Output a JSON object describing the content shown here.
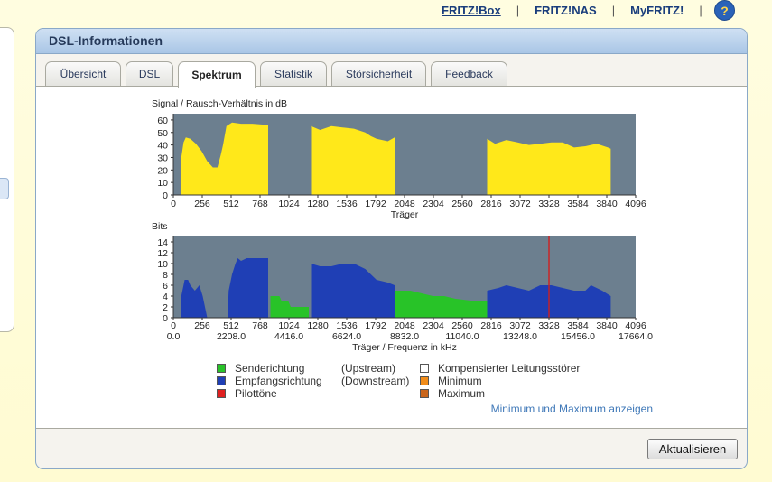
{
  "topnav": {
    "fritzbox": "FRITZ!Box",
    "fritznas": "FRITZ!NAS",
    "myfritz": "MyFRITZ!",
    "sep": "|",
    "help": "?"
  },
  "panel": {
    "title": "DSL-Informationen"
  },
  "tabs": [
    "Übersicht",
    "DSL",
    "Spektrum",
    "Statistik",
    "Störsicherheit",
    "Feedback"
  ],
  "active_tab": "Spektrum",
  "chart_data": [
    {
      "type": "area",
      "title": "Signal / Rausch-Verhältnis in dB",
      "xlabel": "Träger",
      "ylabel": "",
      "xlim": [
        0,
        4096
      ],
      "ylim": [
        0,
        65
      ],
      "yticks": [
        0,
        10,
        20,
        30,
        40,
        50,
        60
      ],
      "xticks": [
        0,
        256,
        512,
        768,
        1024,
        1280,
        1536,
        1792,
        2048,
        2304,
        2560,
        2816,
        3072,
        3328,
        3584,
        3840,
        4096
      ],
      "series": [
        {
          "color": "#ffe81a",
          "segments": [
            [
              [
                64,
                0
              ],
              [
                70,
                30
              ],
              [
                90,
                42
              ],
              [
                110,
                46
              ],
              [
                150,
                45
              ],
              [
                200,
                41
              ],
              [
                250,
                35
              ],
              [
                300,
                27
              ],
              [
                350,
                22
              ],
              [
                390,
                22
              ],
              [
                420,
                32
              ],
              [
                440,
                40
              ],
              [
                470,
                55
              ],
              [
                520,
                58
              ],
              [
                600,
                57
              ],
              [
                700,
                57
              ],
              [
                840,
                56
              ],
              [
                840,
                0
              ]
            ],
            [
              [
                1220,
                0
              ],
              [
                1220,
                55
              ],
              [
                1300,
                52
              ],
              [
                1400,
                55
              ],
              [
                1500,
                54
              ],
              [
                1600,
                53
              ],
              [
                1700,
                50
              ],
              [
                1750,
                47
              ],
              [
                1800,
                45
              ],
              [
                1900,
                43
              ],
              [
                1960,
                46
              ],
              [
                1960,
                0
              ]
            ],
            [
              [
                2780,
                0
              ],
              [
                2780,
                45
              ],
              [
                2850,
                41
              ],
              [
                2950,
                44
              ],
              [
                3050,
                42
              ],
              [
                3150,
                40
              ],
              [
                3250,
                41
              ],
              [
                3350,
                42
              ],
              [
                3450,
                42
              ],
              [
                3550,
                38
              ],
              [
                3650,
                39
              ],
              [
                3750,
                41
              ],
              [
                3850,
                38
              ],
              [
                3875,
                37
              ],
              [
                3875,
                0
              ]
            ]
          ]
        }
      ]
    },
    {
      "type": "area",
      "title": "Bits",
      "xlabel": "Träger / Frequenz in kHz",
      "ylabel": "",
      "xlim": [
        0,
        4096
      ],
      "ylim": [
        0,
        15
      ],
      "yticks": [
        0,
        2,
        4,
        6,
        8,
        10,
        12,
        14
      ],
      "xticks": [
        0,
        256,
        512,
        768,
        1024,
        1280,
        1536,
        1792,
        2048,
        2304,
        2560,
        2816,
        3072,
        3328,
        3584,
        3840,
        4096
      ],
      "freq_ticks": [
        "0.0",
        "2208.0",
        "4416.0",
        "6624.0",
        "8832.0",
        "11040.0",
        "13248.0",
        "15456.0",
        "17664.0"
      ],
      "pilot_tone": 3328,
      "series": [
        {
          "name": "Senderichtung (Upstream)",
          "color": "#28c328",
          "segments": [
            [
              [
                860,
                0
              ],
              [
                860,
                4
              ],
              [
                940,
                4
              ],
              [
                960,
                3
              ],
              [
                1020,
                3
              ],
              [
                1040,
                2
              ],
              [
                1200,
                2
              ],
              [
                1200,
                0
              ]
            ],
            [
              [
                1960,
                0
              ],
              [
                1960,
                5
              ],
              [
                2100,
                5
              ],
              [
                2200,
                4.5
              ],
              [
                2300,
                4
              ],
              [
                2400,
                4
              ],
              [
                2500,
                3.5
              ],
              [
                2700,
                3
              ],
              [
                2780,
                3
              ],
              [
                2780,
                0
              ]
            ]
          ]
        },
        {
          "name": "Empfangsrichtung (Downstream)",
          "color": "#1f3fb5",
          "segments": [
            [
              [
                64,
                0
              ],
              [
                70,
                4
              ],
              [
                90,
                6
              ],
              [
                100,
                7
              ],
              [
                130,
                7
              ],
              [
                150,
                6
              ],
              [
                190,
                5
              ],
              [
                230,
                6
              ],
              [
                260,
                4
              ],
              [
                280,
                2
              ],
              [
                300,
                0
              ]
            ],
            [
              [
                480,
                0
              ],
              [
                490,
                5
              ],
              [
                520,
                8
              ],
              [
                550,
                10
              ],
              [
                570,
                11
              ],
              [
                600,
                10.5
              ],
              [
                650,
                11
              ],
              [
                840,
                11
              ],
              [
                840,
                0
              ]
            ],
            [
              [
                1220,
                0
              ],
              [
                1220,
                10
              ],
              [
                1300,
                9.5
              ],
              [
                1400,
                9.5
              ],
              [
                1500,
                10
              ],
              [
                1600,
                10
              ],
              [
                1700,
                9
              ],
              [
                1800,
                7
              ],
              [
                1900,
                6.5
              ],
              [
                1960,
                6
              ],
              [
                1960,
                0
              ]
            ],
            [
              [
                2780,
                0
              ],
              [
                2780,
                5
              ],
              [
                2880,
                5.5
              ],
              [
                2950,
                6
              ],
              [
                3050,
                5.5
              ],
              [
                3150,
                5
              ],
              [
                3250,
                6
              ],
              [
                3350,
                6
              ],
              [
                3450,
                5.5
              ],
              [
                3550,
                5
              ],
              [
                3650,
                5
              ],
              [
                3700,
                6
              ],
              [
                3800,
                5
              ],
              [
                3875,
                4
              ],
              [
                3875,
                0
              ]
            ]
          ]
        }
      ]
    }
  ],
  "legend": {
    "items": [
      {
        "label": "Senderichtung",
        "sub": "(Upstream)",
        "color": "#28c328"
      },
      {
        "label": "Empfangsrichtung",
        "sub": "(Downstream)",
        "color": "#1f3fb5"
      },
      {
        "label": "Pilottöne",
        "sub": "",
        "color": "#e02020"
      },
      {
        "label": "Kompensierter Leitungsstörer",
        "sub": "",
        "color": "#ffffff"
      },
      {
        "label": "Minimum",
        "sub": "",
        "color": "#f08c1a"
      },
      {
        "label": "Maximum",
        "sub": "",
        "color": "#c9651b"
      }
    ]
  },
  "minmax_link": "Minimum und Maximum anzeigen",
  "refresh_button": "Aktualisieren"
}
